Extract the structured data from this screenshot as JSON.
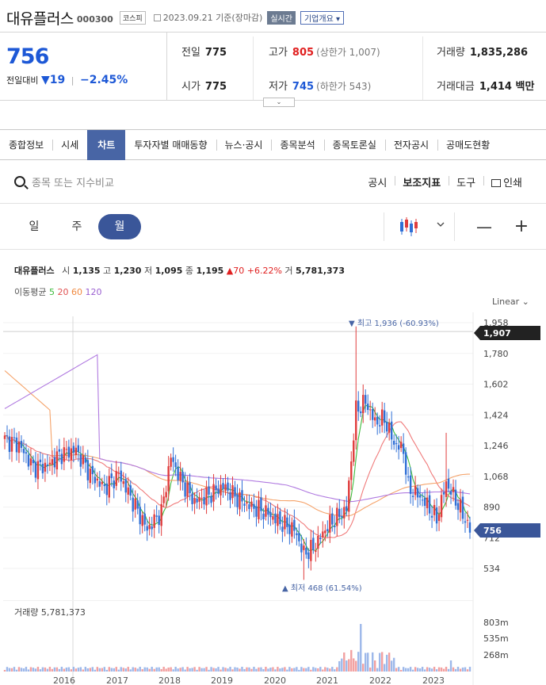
{
  "header": {
    "stock_name": "대유플러스",
    "stock_code": "000300",
    "market_tag": "코스피",
    "date_text": "2023.09.21 기준(장마감)",
    "realtime_label": "실시간",
    "overview_label": "기업개요 ▾"
  },
  "price": {
    "current": "756",
    "change_label": "전일대비",
    "change_arrow": "▼",
    "change_value": "19",
    "change_pct": "−2.45%"
  },
  "summary": {
    "prev_close_label": "전일",
    "prev_close": "775",
    "open_label": "시가",
    "open": "775",
    "high_label": "고가",
    "high": "805",
    "upper_limit": "(상한가 1,007)",
    "low_label": "저가",
    "low": "745",
    "lower_limit": "(하한가 543)",
    "volume_label": "거래량",
    "volume": "1,835,286",
    "amount_label": "거래대금",
    "amount": "1,414 백만"
  },
  "tabs": [
    "종합정보",
    "시세",
    "차트",
    "투자자별 매매동향",
    "뉴스·공시",
    "종목분석",
    "종목토론실",
    "전자공시",
    "공매도현황"
  ],
  "active_tab": "차트",
  "search": {
    "placeholder": "종목 또는 지수비교"
  },
  "tools": {
    "disclosure": "공시",
    "indicator": "보조지표",
    "tool": "도구",
    "print": "인쇄"
  },
  "period": {
    "day": "일",
    "week": "주",
    "month": "월"
  },
  "ohlc": {
    "name": "대유플러스",
    "open_label": "시",
    "open": "1,135",
    "high_label": "고",
    "high": "1,230",
    "low_label": "저",
    "low": "1,095",
    "close_label": "종",
    "close": "1,195",
    "change": "▲70 +6.22%",
    "vol_label": "거",
    "volume": "5,781,373"
  },
  "moving_average": {
    "label": "이동평균",
    "p5": "5",
    "p20": "20",
    "p60": "60",
    "p120": "120"
  },
  "scale_label": "Linear ⌄",
  "volume_label": "거래량 5,781,373",
  "colors": {
    "up": "#e03c3c",
    "down": "#2f6fd6",
    "ma5": "#3dbb3d",
    "ma20": "#f07a7a",
    "ma60": "#f5a36a",
    "ma120": "#b07ae0",
    "accent": "#3a5699"
  },
  "chart_data": {
    "type": "candlestick",
    "price_ticks": [
      534,
      712,
      890,
      1068,
      1246,
      1424,
      1602,
      1780,
      1958
    ],
    "price_tick_labels": [
      "534",
      "712",
      "890",
      "1,068",
      "1,246",
      "1,424",
      "1,602",
      "1,780",
      "1,958"
    ],
    "ylim": [
      420,
      2000
    ],
    "current_price_tag": "756",
    "crosshair_price_tag": "1,907",
    "max_annotation": "▼ 최고 1,936 (-60.93%)",
    "min_annotation": "▲ 최저 468 (61.54%)",
    "volume_ticks": [
      "803m",
      "535m",
      "268m"
    ],
    "year_labels": [
      "2016",
      "2017",
      "2018",
      "2019",
      "2020",
      "2021",
      "2022",
      "2023"
    ],
    "close_anchors": [
      [
        0,
        1280
      ],
      [
        6,
        1250
      ],
      [
        12,
        1120
      ],
      [
        18,
        1130
      ],
      [
        24,
        1200
      ],
      [
        30,
        1220
      ],
      [
        36,
        1080
      ],
      [
        42,
        1000
      ],
      [
        48,
        1080
      ],
      [
        54,
        920
      ],
      [
        60,
        760
      ],
      [
        66,
        860
      ],
      [
        70,
        1180
      ],
      [
        74,
        1050
      ],
      [
        80,
        920
      ],
      [
        86,
        960
      ],
      [
        92,
        1010
      ],
      [
        98,
        940
      ],
      [
        104,
        890
      ],
      [
        110,
        860
      ],
      [
        116,
        800
      ],
      [
        122,
        760
      ],
      [
        126,
        620
      ],
      [
        130,
        650
      ],
      [
        136,
        780
      ],
      [
        140,
        830
      ],
      [
        144,
        880
      ],
      [
        148,
        1450
      ],
      [
        152,
        1500
      ],
      [
        156,
        1380
      ],
      [
        160,
        1400
      ],
      [
        164,
        1260
      ],
      [
        168,
        1220
      ],
      [
        170,
        1000
      ],
      [
        174,
        960
      ],
      [
        178,
        900
      ],
      [
        182,
        820
      ],
      [
        186,
        1030
      ],
      [
        190,
        930
      ],
      [
        194,
        820
      ],
      [
        196,
        756
      ]
    ]
  }
}
